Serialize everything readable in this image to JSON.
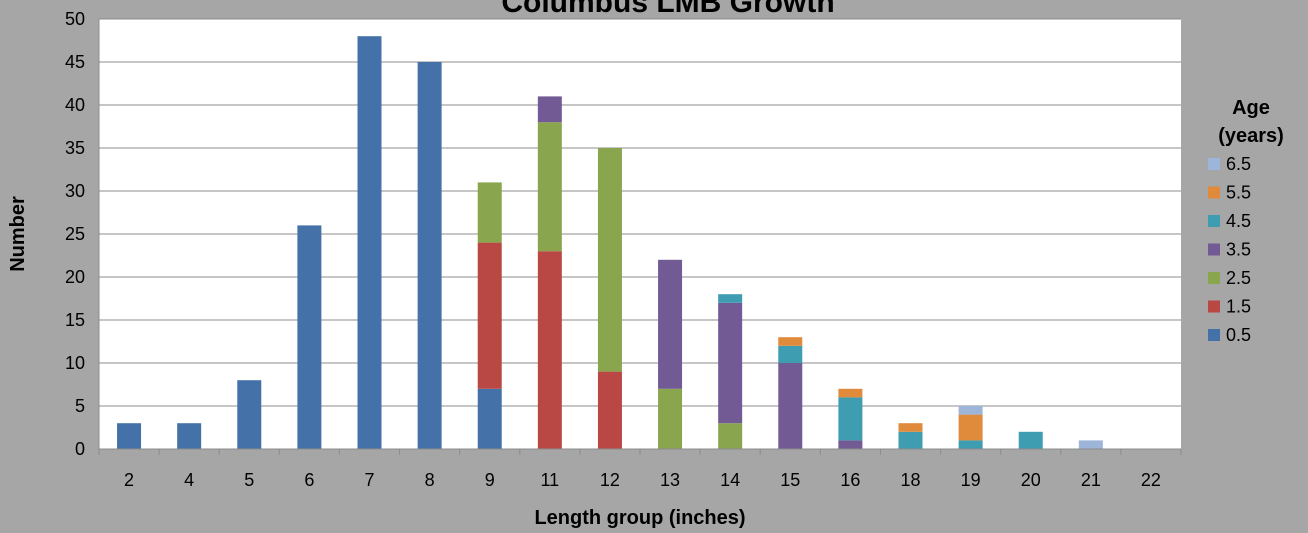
{
  "chart_data": {
    "type": "bar",
    "stacked": true,
    "title": "Columbus LMB Growth",
    "xlabel": "Length group (inches)",
    "ylabel": "Number",
    "ylim": [
      0,
      50
    ],
    "yticks": [
      0,
      5,
      10,
      15,
      20,
      25,
      30,
      35,
      40,
      45,
      50
    ],
    "grid": true,
    "legend_title": [
      "Age",
      "(years)"
    ],
    "legend_position": "right",
    "categories": [
      "2",
      "4",
      "5",
      "6",
      "7",
      "8",
      "9",
      "11",
      "12",
      "13",
      "14",
      "15",
      "16",
      "18",
      "19",
      "20",
      "21",
      "22"
    ],
    "series": [
      {
        "name": "0.5",
        "color": "#4472a8",
        "values": [
          3,
          3,
          8,
          26,
          48,
          45,
          7,
          0,
          0,
          0,
          0,
          0,
          0,
          0,
          0,
          0,
          0,
          0
        ]
      },
      {
        "name": "1.5",
        "color": "#b94744",
        "values": [
          0,
          0,
          0,
          0,
          0,
          0,
          17,
          23,
          9,
          0,
          0,
          0,
          0,
          0,
          0,
          0,
          0,
          0
        ]
      },
      {
        "name": "2.5",
        "color": "#89a54e",
        "values": [
          0,
          0,
          0,
          0,
          0,
          0,
          7,
          15,
          26,
          7,
          3,
          0,
          0,
          0,
          0,
          0,
          0,
          0
        ]
      },
      {
        "name": "3.5",
        "color": "#725a94",
        "values": [
          0,
          0,
          0,
          0,
          0,
          0,
          0,
          3,
          0,
          15,
          14,
          10,
          1,
          0,
          0,
          0,
          0,
          0
        ]
      },
      {
        "name": "4.5",
        "color": "#3e9db1",
        "values": [
          0,
          0,
          0,
          0,
          0,
          0,
          0,
          0,
          0,
          0,
          1,
          2,
          5,
          2,
          1,
          2,
          0,
          0
        ]
      },
      {
        "name": "5.5",
        "color": "#e08a3c",
        "values": [
          0,
          0,
          0,
          0,
          0,
          0,
          0,
          0,
          0,
          0,
          0,
          1,
          1,
          1,
          3,
          0,
          0,
          0
        ]
      },
      {
        "name": "6.5",
        "color": "#9db5d9",
        "values": [
          0,
          0,
          0,
          0,
          0,
          0,
          0,
          0,
          0,
          0,
          0,
          0,
          0,
          0,
          1,
          0,
          1,
          0
        ]
      }
    ]
  }
}
